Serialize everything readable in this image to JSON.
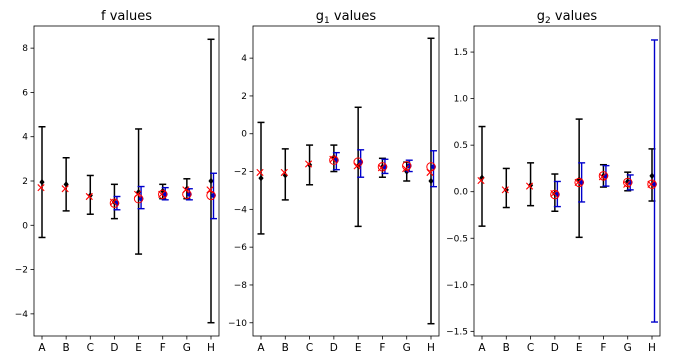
{
  "chart_data": [
    {
      "type": "scatter",
      "title_main": "f",
      "title_sub": "",
      "title_tail": " values",
      "categories": [
        "A",
        "B",
        "C",
        "D",
        "E",
        "F",
        "G",
        "H"
      ],
      "ylim": [
        -5.0,
        9.0
      ],
      "yticks": [
        -4,
        -2,
        0,
        2,
        4,
        6,
        8
      ],
      "ytick_labels": [
        "−4",
        "−2",
        "0",
        "2",
        "4",
        "6",
        "8"
      ],
      "series": [
        {
          "style": "black-errorbar-diamond",
          "color": "#000000",
          "values": [
            1.95,
            1.85,
            1.35,
            1.05,
            1.5,
            1.55,
            1.65,
            2.0
          ],
          "lower": [
            -0.55,
            0.65,
            0.5,
            0.3,
            -1.3,
            1.2,
            1.2,
            -4.4
          ],
          "upper": [
            4.45,
            3.05,
            2.25,
            1.85,
            4.35,
            1.85,
            2.1,
            8.4
          ]
        },
        {
          "style": "blue-errorbar-circle",
          "color": "#0000cc",
          "values": [
            null,
            null,
            null,
            1.0,
            1.2,
            1.4,
            1.4,
            1.35
          ],
          "lower": [
            null,
            null,
            null,
            0.7,
            0.75,
            1.15,
            1.15,
            0.3
          ],
          "upper": [
            null,
            null,
            null,
            1.3,
            1.75,
            1.7,
            1.65,
            2.35
          ]
        },
        {
          "style": "red-x",
          "color": "#ff0000",
          "values": [
            1.7,
            1.65,
            1.3,
            1.05,
            1.4,
            1.4,
            1.6,
            1.6
          ]
        }
      ]
    },
    {
      "type": "scatter",
      "title_main": "g",
      "title_sub": "1",
      "title_tail": " values",
      "categories": [
        "A",
        "B",
        "C",
        "D",
        "E",
        "F",
        "G",
        "H"
      ],
      "ylim": [
        -10.7,
        5.7
      ],
      "yticks": [
        -10,
        -8,
        -6,
        -4,
        -2,
        0,
        2,
        4
      ],
      "ytick_labels": [
        "−10",
        "−8",
        "−6",
        "−4",
        "−2",
        "0",
        "2",
        "4"
      ],
      "series": [
        {
          "style": "black-errorbar-diamond",
          "color": "#000000",
          "values": [
            -2.35,
            -2.2,
            -1.65,
            -1.25,
            -1.7,
            -1.75,
            -2.0,
            -2.5
          ],
          "lower": [
            -5.3,
            -3.5,
            -2.7,
            -2.0,
            -4.9,
            -2.3,
            -2.5,
            -10.05
          ],
          "upper": [
            0.6,
            -0.8,
            -0.6,
            -0.6,
            1.4,
            -1.3,
            -1.5,
            5.05
          ]
        },
        {
          "style": "blue-errorbar-circle",
          "color": "#0000cc",
          "values": [
            null,
            null,
            null,
            -1.4,
            -1.5,
            -1.75,
            -1.7,
            -1.75
          ],
          "lower": [
            null,
            null,
            null,
            -1.9,
            -2.3,
            -2.1,
            -2.0,
            -2.8
          ],
          "upper": [
            null,
            null,
            null,
            -1.0,
            -0.85,
            -1.35,
            -1.4,
            -0.9
          ]
        },
        {
          "style": "red-x",
          "color": "#ff0000",
          "values": [
            -2.05,
            -2.05,
            -1.6,
            -1.35,
            -1.7,
            -1.8,
            -1.85,
            -2.05
          ]
        }
      ]
    },
    {
      "type": "scatter",
      "title_main": "g",
      "title_sub": "2",
      "title_tail": " values",
      "categories": [
        "A",
        "B",
        "C",
        "D",
        "E",
        "F",
        "G",
        "H"
      ],
      "ylim": [
        -1.55,
        1.78
      ],
      "yticks": [
        -1.5,
        -1.0,
        -0.5,
        0.0,
        0.5,
        1.0,
        1.5
      ],
      "ytick_labels": [
        "−1.5",
        "−1.0",
        "−0.5",
        "0.0",
        "0.5",
        "1.0",
        "1.5"
      ],
      "series": [
        {
          "style": "black-errorbar-diamond",
          "color": "#000000",
          "values": [
            0.15,
            0.02,
            0.07,
            -0.02,
            0.13,
            0.17,
            0.11,
            0.17
          ],
          "lower": [
            -0.37,
            -0.17,
            -0.15,
            -0.21,
            -0.49,
            0.05,
            0.01,
            -0.1
          ],
          "upper": [
            0.7,
            0.25,
            0.31,
            0.19,
            0.78,
            0.29,
            0.21,
            0.46
          ]
        },
        {
          "style": "blue-errorbar-circle",
          "color": "#0000cc",
          "values": [
            null,
            null,
            null,
            -0.03,
            0.1,
            0.17,
            0.1,
            0.08
          ],
          "lower": [
            null,
            null,
            null,
            -0.16,
            -0.11,
            0.06,
            0.02,
            -1.4
          ],
          "upper": [
            null,
            null,
            null,
            0.11,
            0.31,
            0.28,
            0.18,
            1.63
          ]
        },
        {
          "style": "red-x",
          "color": "#ff0000",
          "values": [
            0.12,
            0.02,
            0.06,
            -0.02,
            0.1,
            0.16,
            0.08,
            0.08
          ]
        }
      ]
    }
  ]
}
